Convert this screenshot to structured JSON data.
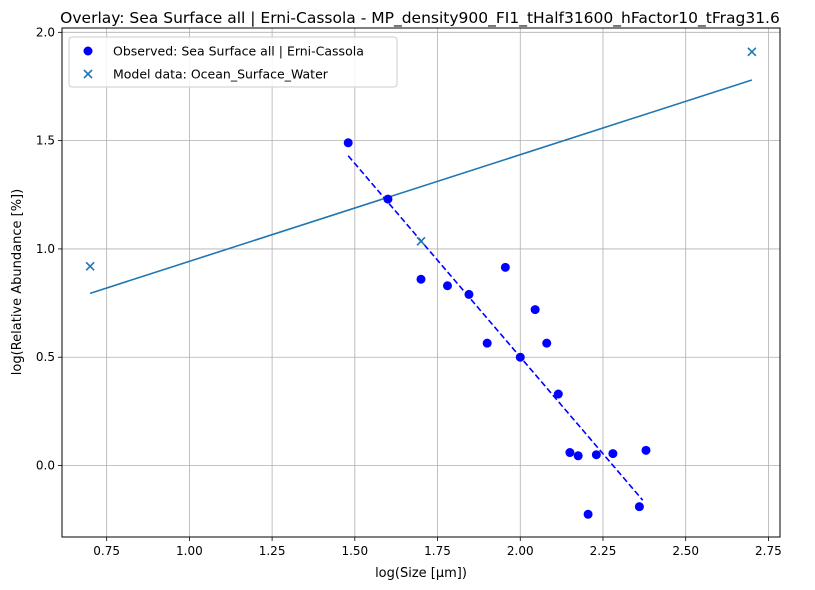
{
  "chart_data": {
    "type": "scatter",
    "title": "Overlay: Sea Surface all | Erni-Cassola - MP_density900_FI1_tHalf31600_hFactor10_tFrag31.6",
    "xlabel": "log(Size [μm])",
    "ylabel": "log(Relative Abundance [%])",
    "xlim": [
      0.615,
      2.785
    ],
    "ylim": [
      -0.33,
      2.02
    ],
    "x_ticks": [
      0.75,
      1.0,
      1.25,
      1.5,
      1.75,
      2.0,
      2.25,
      2.5,
      2.75
    ],
    "x_tick_labels": [
      "0.75",
      "1.00",
      "1.25",
      "1.50",
      "1.75",
      "2.00",
      "2.25",
      "2.50",
      "2.75"
    ],
    "y_ticks": [
      0.0,
      0.5,
      1.0,
      1.5,
      2.0
    ],
    "y_tick_labels": [
      "0.0",
      "0.5",
      "1.0",
      "1.5",
      "2.0"
    ],
    "grid": true,
    "legend_placement": "top-left",
    "series": [
      {
        "name": "Observed: Sea Surface all | Erni-Cassola",
        "marker": "circle",
        "color": "#0000ff",
        "points": [
          [
            1.48,
            1.49
          ],
          [
            1.6,
            1.23
          ],
          [
            1.7,
            0.86
          ],
          [
            1.78,
            0.83
          ],
          [
            1.845,
            0.79
          ],
          [
            1.9,
            0.565
          ],
          [
            1.955,
            0.915
          ],
          [
            2.0,
            0.5
          ],
          [
            2.045,
            0.72
          ],
          [
            2.08,
            0.565
          ],
          [
            2.115,
            0.33
          ],
          [
            2.15,
            0.06
          ],
          [
            2.175,
            0.045
          ],
          [
            2.205,
            -0.225
          ],
          [
            2.23,
            0.05
          ],
          [
            2.28,
            0.055
          ],
          [
            2.36,
            -0.19
          ],
          [
            2.38,
            0.07
          ]
        ]
      },
      {
        "name": "Model data: Ocean_Surface_Water",
        "marker": "x",
        "color": "#1f77b4",
        "points": [
          [
            0.7,
            0.92
          ],
          [
            1.7,
            1.035
          ],
          [
            2.7,
            1.91
          ]
        ]
      }
    ],
    "fit_lines": [
      {
        "series": "Observed",
        "style": "dashed",
        "color": "#0000ff",
        "from": [
          1.48,
          1.43
        ],
        "to": [
          2.37,
          -0.16
        ]
      },
      {
        "series": "Model",
        "style": "solid",
        "color": "#1f77b4",
        "from": [
          0.7,
          0.795
        ],
        "to": [
          2.7,
          1.78
        ]
      }
    ]
  }
}
